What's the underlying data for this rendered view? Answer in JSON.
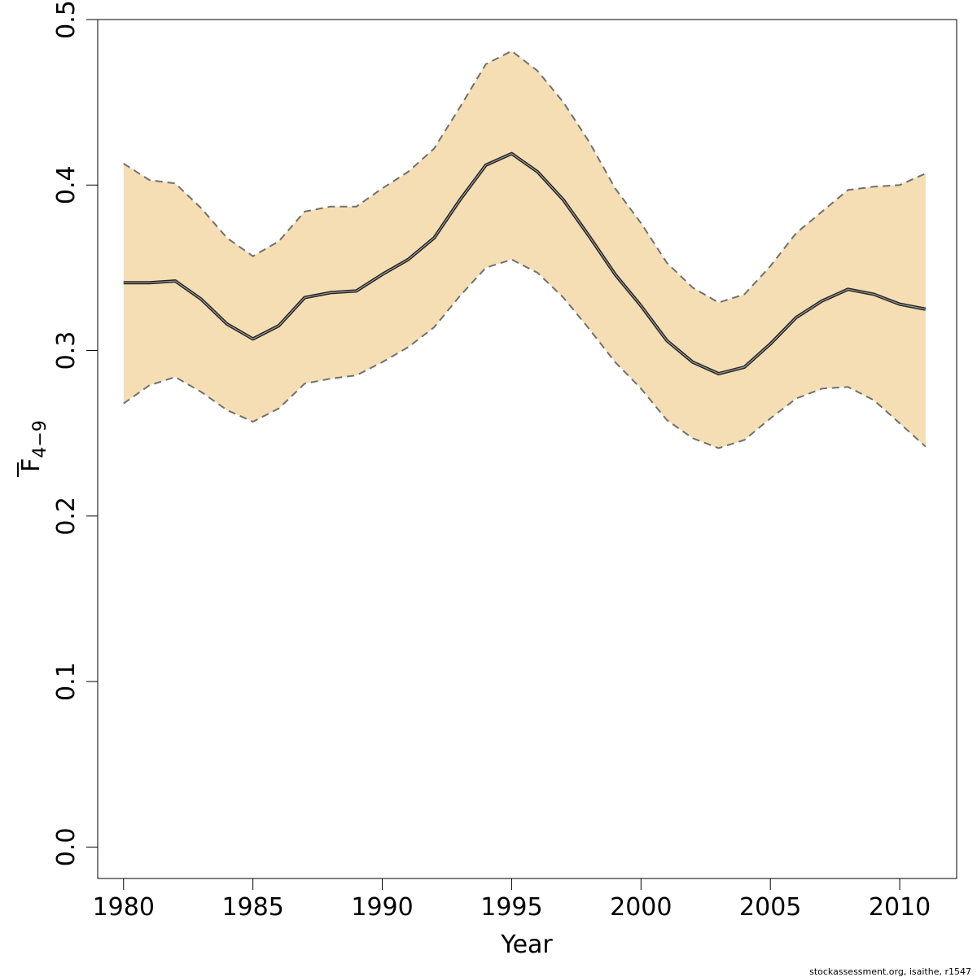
{
  "chart_data": {
    "type": "area",
    "xlabel": "Year",
    "ylabel": {
      "base": "F",
      "subscript": "4−9",
      "overline": true
    },
    "xlim": [
      1979,
      2012.2
    ],
    "ylim": [
      -0.019,
      0.5
    ],
    "xticks": [
      1980,
      1985,
      1990,
      1995,
      2000,
      2005,
      2010
    ],
    "yticks": [
      0.0,
      0.1,
      0.2,
      0.3,
      0.4,
      0.5
    ],
    "ytick_labels": [
      "0.0",
      "0.1",
      "0.2",
      "0.3",
      "0.4",
      "0.5"
    ],
    "grid": false,
    "legend": "none",
    "x": [
      1980,
      1981,
      1982,
      1983,
      1984,
      1985,
      1986,
      1987,
      1988,
      1989,
      1990,
      1991,
      1992,
      1993,
      1994,
      1995,
      1996,
      1997,
      1998,
      1999,
      2000,
      2001,
      2002,
      2003,
      2004,
      2005,
      2006,
      2007,
      2008,
      2009,
      2010,
      2011
    ],
    "series": [
      {
        "role": "estimate",
        "values": [
          0.341,
          0.341,
          0.342,
          0.331,
          0.316,
          0.307,
          0.315,
          0.332,
          0.335,
          0.336,
          0.346,
          0.355,
          0.368,
          0.391,
          0.412,
          0.419,
          0.408,
          0.391,
          0.369,
          0.346,
          0.327,
          0.306,
          0.293,
          0.286,
          0.29,
          0.304,
          0.32,
          0.33,
          0.337,
          0.334,
          0.328,
          0.325
        ],
        "color": "#404040"
      },
      {
        "role": "upper",
        "values": [
          0.413,
          0.403,
          0.401,
          0.386,
          0.368,
          0.357,
          0.366,
          0.384,
          0.387,
          0.387,
          0.398,
          0.408,
          0.422,
          0.447,
          0.473,
          0.481,
          0.469,
          0.45,
          0.426,
          0.398,
          0.377,
          0.353,
          0.338,
          0.329,
          0.334,
          0.351,
          0.371,
          0.384,
          0.397,
          0.399,
          0.4,
          0.407
        ],
        "color": "#707070"
      },
      {
        "role": "lower",
        "values": [
          0.268,
          0.279,
          0.284,
          0.275,
          0.264,
          0.257,
          0.265,
          0.28,
          0.283,
          0.285,
          0.293,
          0.302,
          0.314,
          0.333,
          0.35,
          0.355,
          0.347,
          0.332,
          0.313,
          0.293,
          0.277,
          0.258,
          0.247,
          0.241,
          0.246,
          0.259,
          0.271,
          0.277,
          0.278,
          0.27,
          0.256,
          0.242
        ],
        "color": "#707070"
      }
    ],
    "band_color": "#f5deb3"
  },
  "credit": "stockassessment.org, isaithe, r1547"
}
